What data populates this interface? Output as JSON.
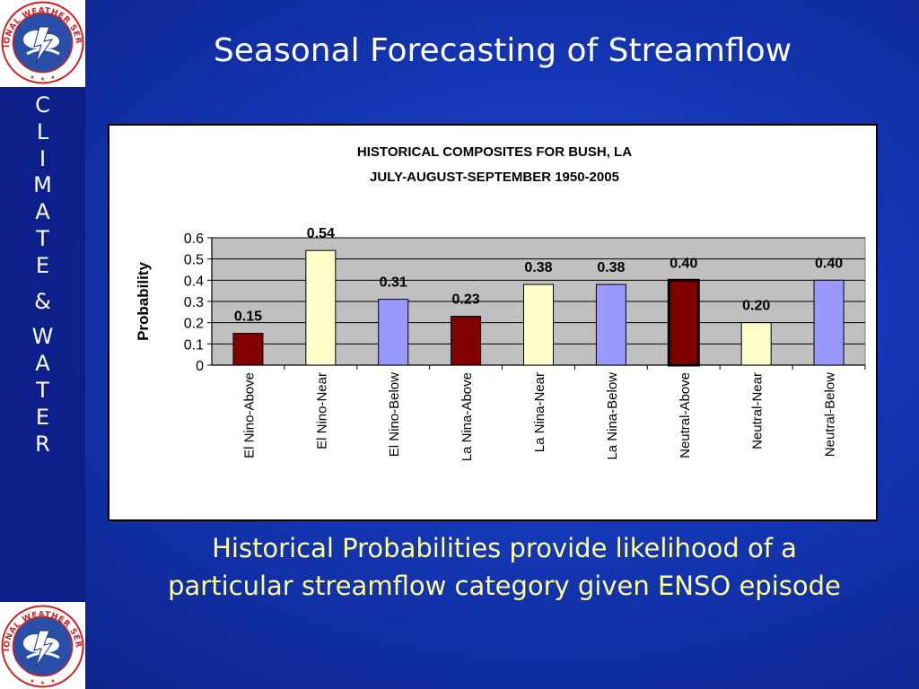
{
  "slide": {
    "title": "Seasonal Forecasting of Streamflow",
    "caption_line1": "Historical Probabilities provide likelihood of a",
    "caption_line2": "particular streamflow category given ENSO episode"
  },
  "sidebar": {
    "word1": [
      "C",
      "L",
      "I",
      "M",
      "A",
      "T",
      "E"
    ],
    "ampersand": "&",
    "word2": [
      "W",
      "A",
      "T",
      "E",
      "R"
    ],
    "logo_text": "NATIONAL WEATHER SERVICE"
  },
  "colors": {
    "el_nino": "#800000",
    "neutral_near": "#ffffcc",
    "below": "#9999ff",
    "plot_bg": "#c0c0c0",
    "caption": "#ffff99"
  },
  "chart_data": {
    "type": "bar",
    "title": "HISTORICAL COMPOSITES FOR BUSH, LA",
    "subtitle": "JULY-AUGUST-SEPTEMBER 1950-2005",
    "xlabel": "",
    "ylabel": "Probability",
    "ylim": [
      0,
      0.6
    ],
    "yticks": [
      "0",
      "0.1",
      "0.2",
      "0.3",
      "0.4",
      "0.5",
      "0.6"
    ],
    "grid": true,
    "categories": [
      "El Nino-Above",
      "El Nino-Near",
      "El Nino-Below",
      "La Nina-Above",
      "La Nina-Near",
      "La Nina-Below",
      "Neutral-Above",
      "Neutral-Near",
      "Neutral-Below"
    ],
    "values": [
      0.15,
      0.54,
      0.31,
      0.23,
      0.38,
      0.38,
      0.4,
      0.2,
      0.4
    ],
    "data_labels": [
      "0.15",
      "0.54",
      "0.31",
      "0.23",
      "0.38",
      "0.38",
      "0.40",
      "0.20",
      "0.40"
    ],
    "bar_colors": [
      "#800000",
      "#ffffcc",
      "#9999ff",
      "#800000",
      "#ffffcc",
      "#9999ff",
      "#800000",
      "#ffffcc",
      "#9999ff"
    ],
    "highlighted_category": "Neutral-Above"
  }
}
